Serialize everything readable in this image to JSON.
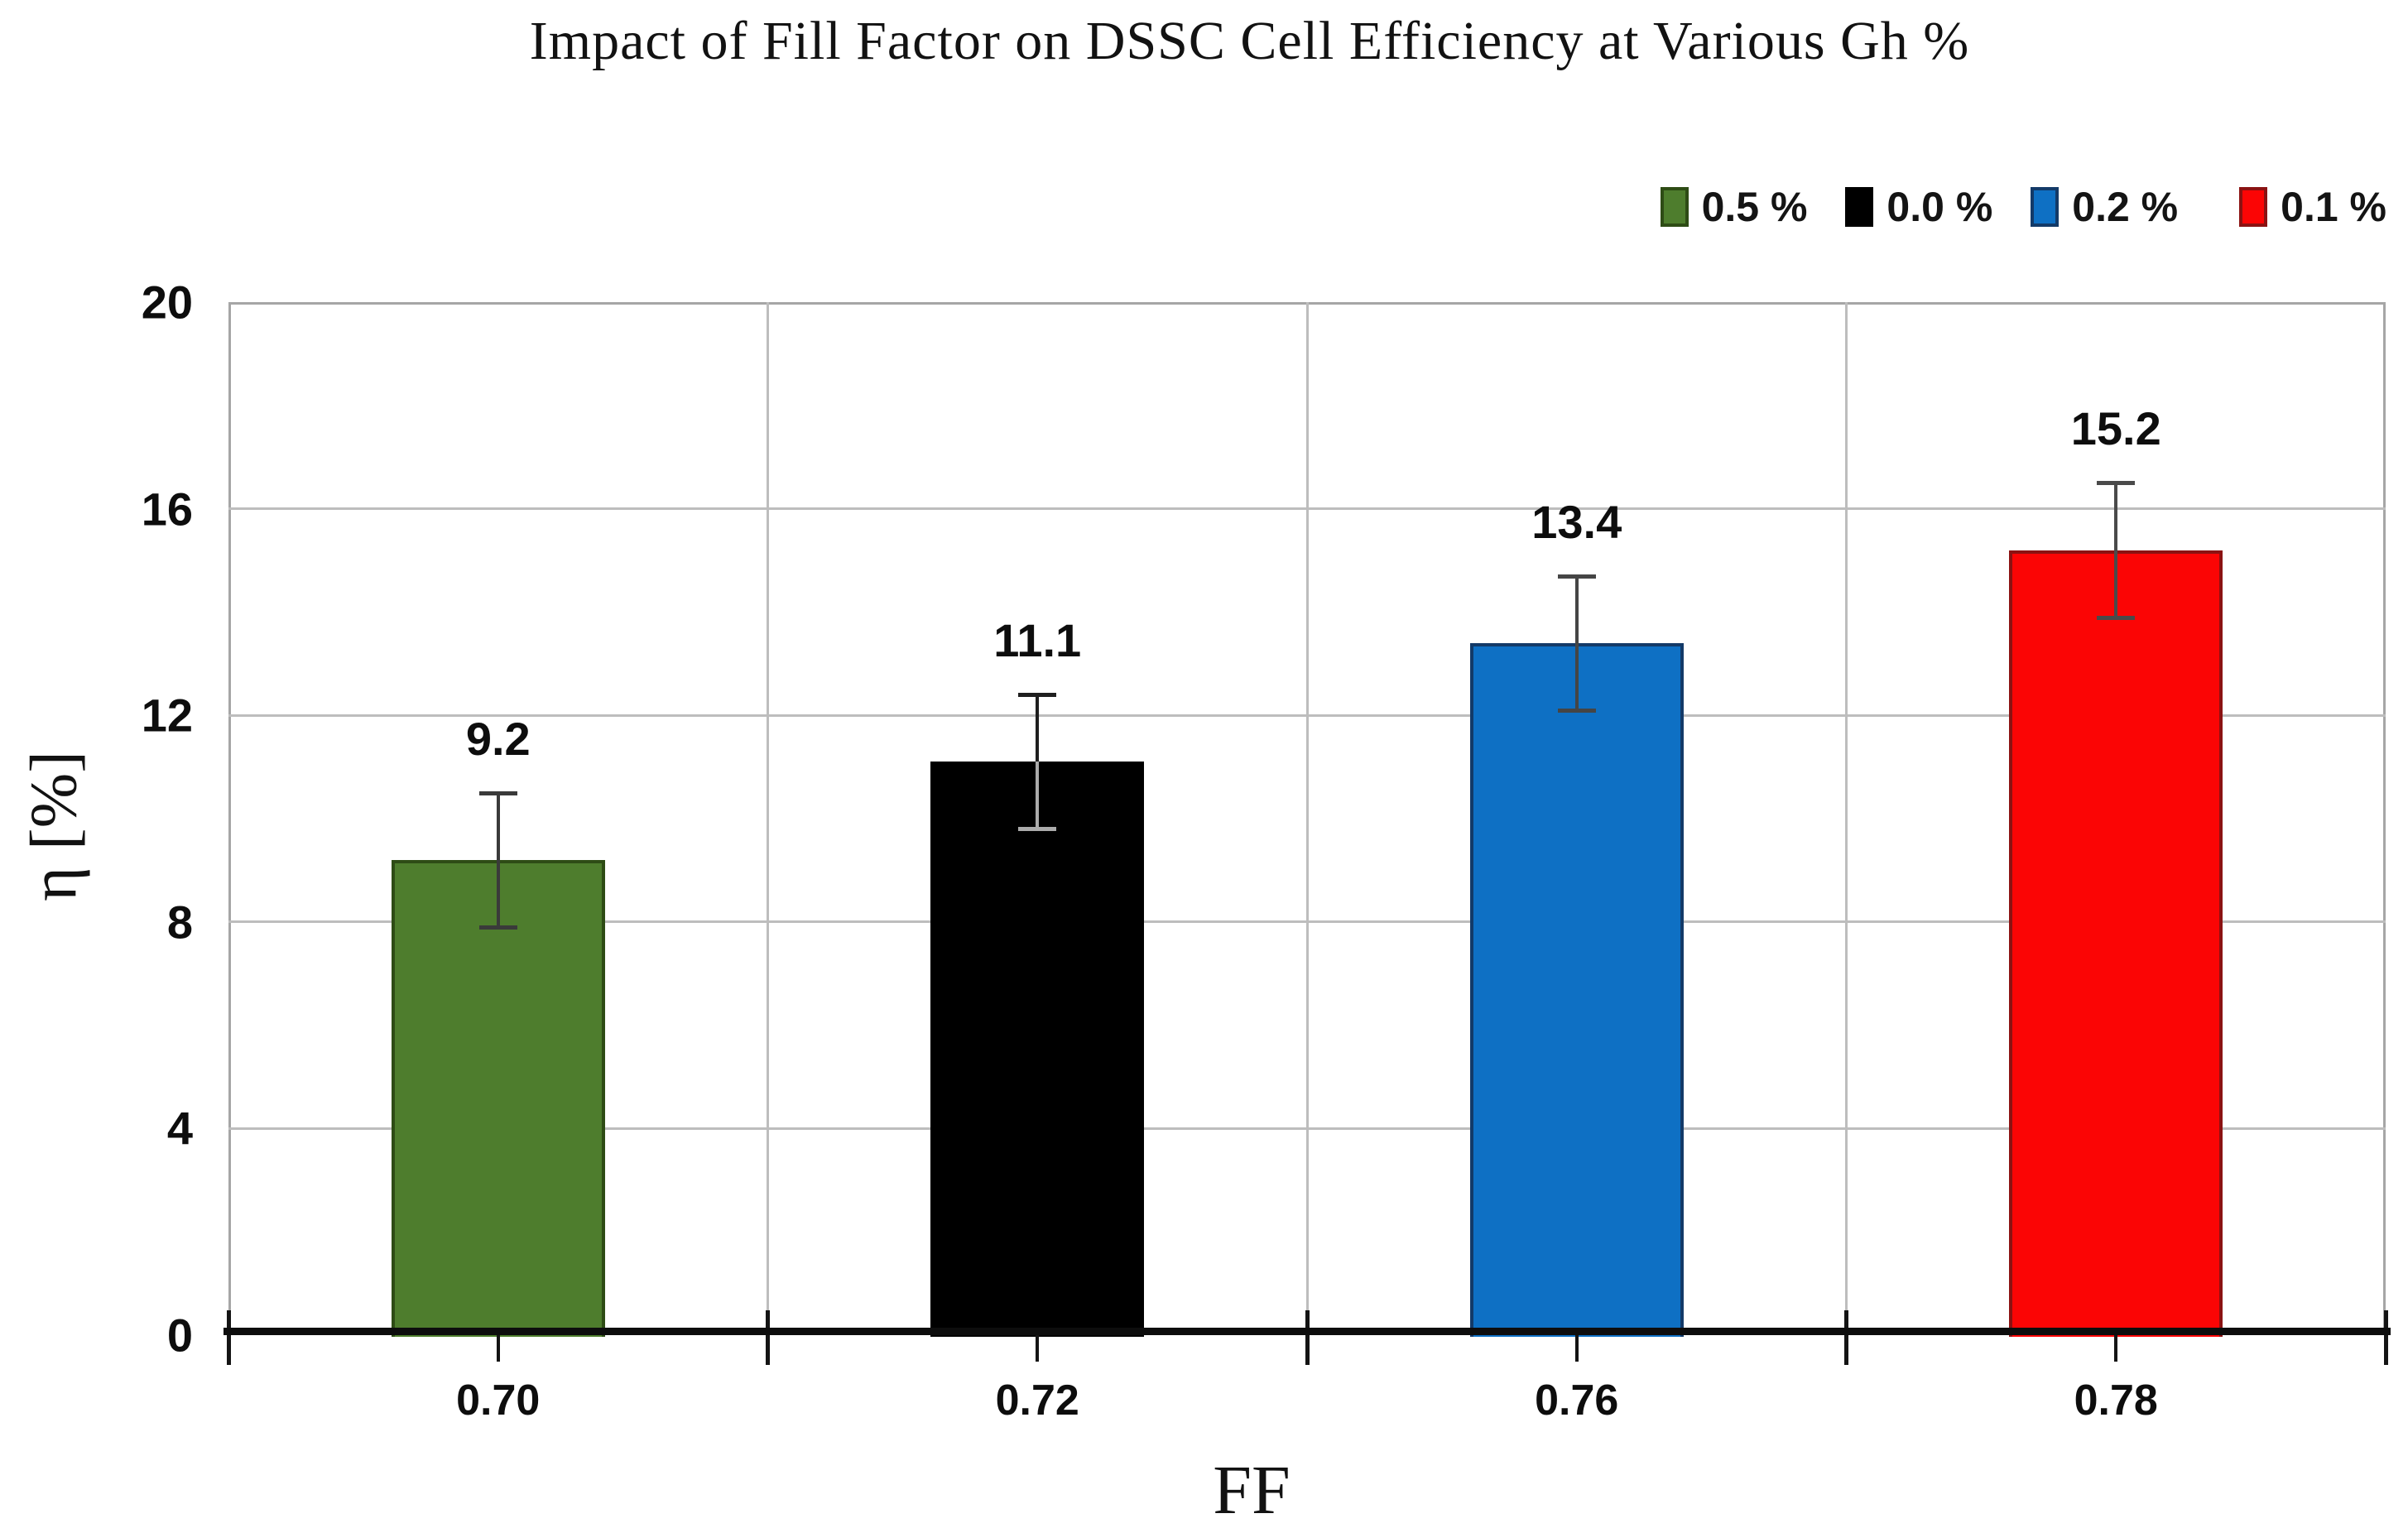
{
  "figure": {
    "background": "#ffffff"
  },
  "chart_data": {
    "type": "bar",
    "title": "Impact of Fill Factor on DSSC Cell Efficiency at Various Gh %",
    "xlabel": "FF",
    "ylabel": "η [%]",
    "ylim": [
      0,
      20
    ],
    "yticks": [
      0,
      4,
      8,
      12,
      16,
      20
    ],
    "grid": true,
    "legend_position": "top-right",
    "categories": [
      "0.70",
      "0.72",
      "0.76",
      "0.78"
    ],
    "bars": [
      {
        "category": "0.70",
        "series": "0.5 %",
        "value": 9.2,
        "label": "9.2",
        "error": 1.3,
        "fill": "#4e7d2d",
        "border": "#2e4c15",
        "error_color": "#3a3a3a"
      },
      {
        "category": "0.72",
        "series": "0.0 %",
        "value": 11.1,
        "label": "11.1",
        "error": 1.3,
        "fill": "#000000",
        "border": "#000000",
        "error_color": "#1f1f1f",
        "error_inner_color": "#ababab"
      },
      {
        "category": "0.76",
        "series": "0.2 %",
        "value": 13.4,
        "label": "13.4",
        "error": 1.3,
        "fill": "#0e70c4",
        "border": "#133a68",
        "error_color": "#454545"
      },
      {
        "category": "0.78",
        "series": "0.1 %",
        "value": 15.2,
        "label": "15.2",
        "error": 1.3,
        "fill": "#fb0505",
        "border": "#8b1212",
        "error_color": "#4a4a4a"
      }
    ],
    "legend": [
      {
        "label": "0.5 %",
        "color": "#4e7d2d",
        "border": "#2e4c15"
      },
      {
        "label": "0.0 %",
        "color": "#000000",
        "border": "#000000"
      },
      {
        "label": "0.2 %",
        "color": "#0e70c4",
        "border": "#133a68"
      },
      {
        "label": "0.1 %",
        "color": "#fb0505",
        "border": "#8b1212"
      }
    ],
    "axis_colors": {
      "gridline": "#bdbdbd",
      "plot_border": "#a6a6a6",
      "axis_line": "#0d0d0d",
      "tick": "#141414",
      "text": "#0d0d0d"
    }
  }
}
